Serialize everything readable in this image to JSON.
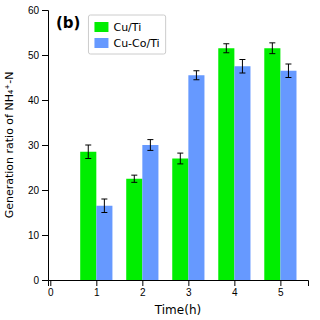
{
  "chart_data": {
    "type": "bar",
    "title": "(b)",
    "xlabel": "Time(h)",
    "ylabel": "Generation ratio of NH₄⁺-N",
    "x": [
      1,
      2,
      3,
      4,
      5
    ],
    "xlim": [
      -0.05,
      5.6
    ],
    "xticks": [
      0,
      1,
      2,
      3,
      4,
      5
    ],
    "ylim": [
      0,
      60
    ],
    "yticks": [
      0,
      10,
      20,
      30,
      40,
      50,
      60
    ],
    "legend": "upper left",
    "series": [
      {
        "name": "Cu/Ti",
        "color": "#00ee00",
        "values": [
          28.5,
          22.5,
          27.0,
          51.5,
          51.5
        ],
        "errors": [
          1.5,
          0.8,
          1.2,
          1.0,
          1.2
        ]
      },
      {
        "name": "Cu-Co/Ti",
        "color": "#6699ff",
        "values": [
          16.5,
          30.0,
          45.5,
          47.5,
          46.5
        ],
        "errors": [
          1.5,
          1.2,
          1.0,
          1.5,
          1.5
        ]
      }
    ]
  }
}
